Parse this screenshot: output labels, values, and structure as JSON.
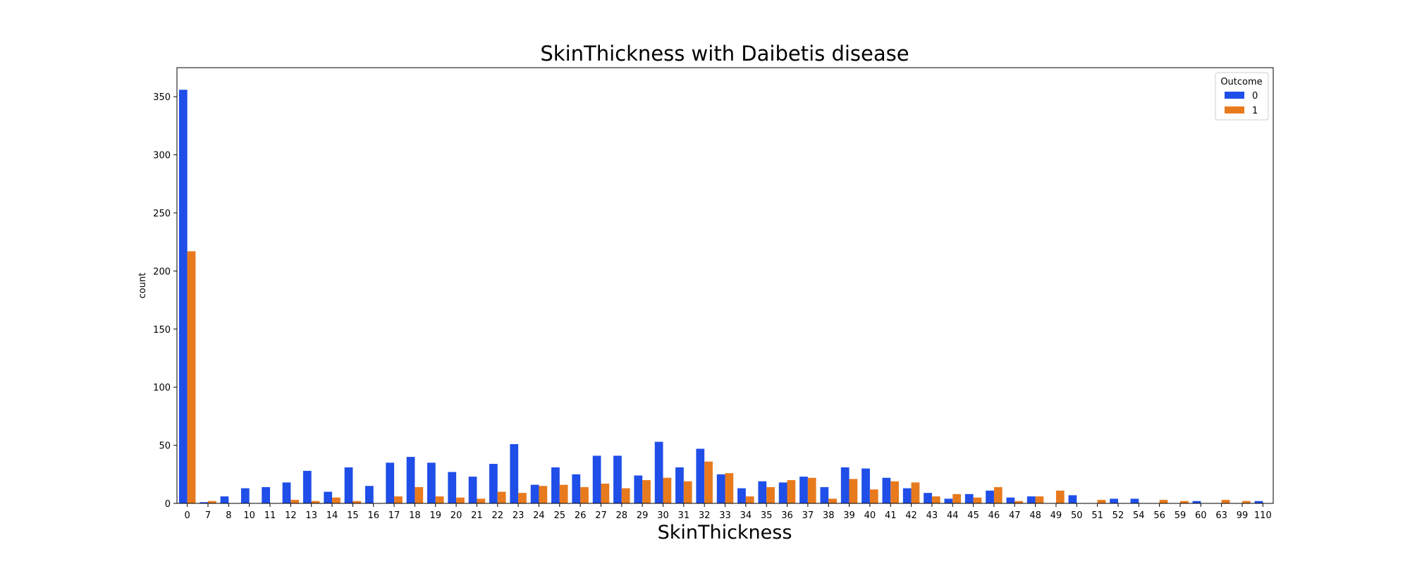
{
  "chart_data": {
    "type": "bar",
    "title": "SkinThickness with Daibetis disease",
    "xlabel": "SkinThickness",
    "ylabel": "count",
    "ylim": [
      0,
      375
    ],
    "yticks": [
      0,
      50,
      100,
      150,
      200,
      250,
      300,
      350
    ],
    "grid": false,
    "legend": {
      "title": "Outcome",
      "position": "top-right"
    },
    "categories": [
      "0",
      "7",
      "8",
      "10",
      "11",
      "12",
      "13",
      "14",
      "15",
      "16",
      "17",
      "18",
      "19",
      "20",
      "21",
      "22",
      "23",
      "24",
      "25",
      "26",
      "27",
      "28",
      "29",
      "30",
      "31",
      "32",
      "33",
      "34",
      "35",
      "36",
      "37",
      "38",
      "39",
      "40",
      "41",
      "42",
      "43",
      "44",
      "45",
      "46",
      "47",
      "48",
      "49",
      "50",
      "51",
      "52",
      "54",
      "56",
      "59",
      "60",
      "63",
      "99",
      "110"
    ],
    "series": [
      {
        "name": "0",
        "color": "#1f4ee8",
        "values": [
          356,
          1,
          6,
          13,
          14,
          18,
          28,
          10,
          31,
          15,
          35,
          40,
          35,
          27,
          23,
          34,
          51,
          16,
          31,
          25,
          41,
          41,
          24,
          53,
          31,
          47,
          25,
          13,
          19,
          18,
          23,
          14,
          31,
          30,
          22,
          13,
          9,
          4,
          8,
          11,
          5,
          6,
          0,
          7,
          0,
          4,
          4,
          0,
          0,
          2,
          0,
          0,
          2
        ]
      },
      {
        "name": "1",
        "color": "#e87a1e",
        "values": [
          217,
          2,
          0,
          0,
          0,
          3,
          2,
          5,
          2,
          0,
          6,
          14,
          6,
          5,
          4,
          10,
          9,
          15,
          16,
          14,
          17,
          13,
          20,
          22,
          19,
          36,
          26,
          6,
          14,
          20,
          22,
          4,
          21,
          12,
          19,
          18,
          6,
          8,
          5,
          14,
          2,
          6,
          11,
          0,
          3,
          0,
          0,
          3,
          2,
          0,
          3,
          2,
          0
        ]
      }
    ]
  }
}
